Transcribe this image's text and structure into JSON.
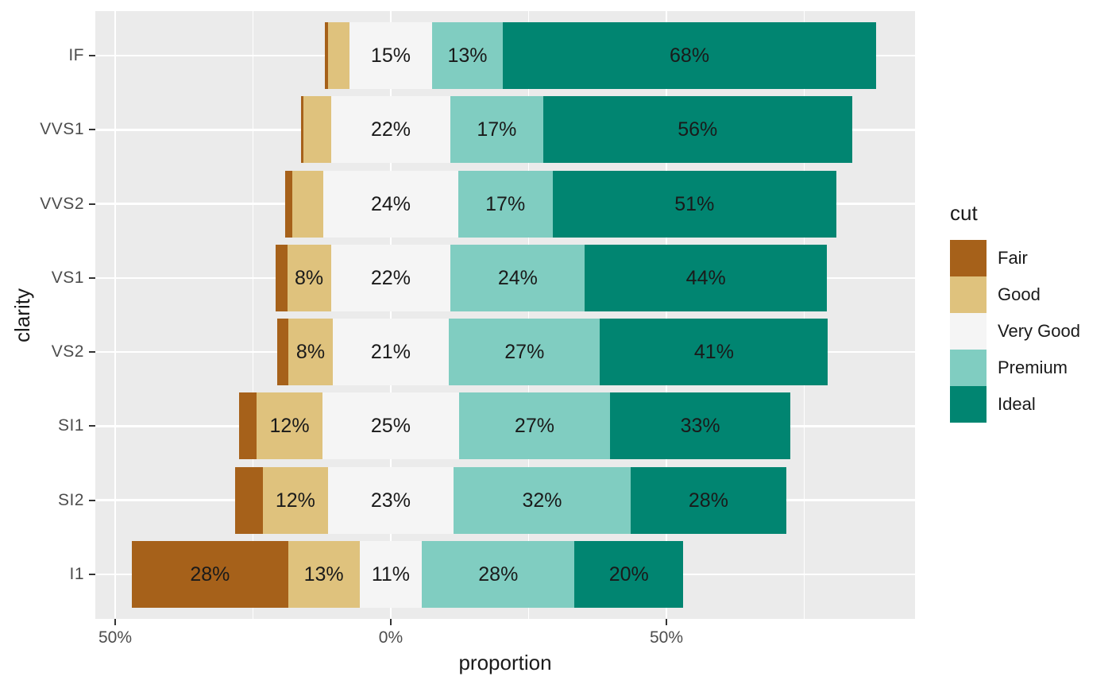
{
  "chart_data": {
    "type": "bar",
    "variant": "diverging-stacked-likert",
    "orientation": "horizontal",
    "title": "",
    "xlabel": "proportion",
    "ylabel": "clarity",
    "center_category": "Very Good",
    "categories": [
      "IF",
      "VVS1",
      "VVS2",
      "VS1",
      "VS2",
      "SI1",
      "SI2",
      "I1"
    ],
    "series": [
      {
        "name": "Fair",
        "color": "#A6611A",
        "values": [
          0.5,
          0.47,
          1.36,
          2.08,
          2.13,
          3.12,
          5.07,
          28.34
        ],
        "bar_labels": [
          null,
          null,
          null,
          null,
          null,
          null,
          null,
          "28%"
        ]
      },
      {
        "name": "Good",
        "color": "#DFC27D",
        "values": [
          3.97,
          5.09,
          5.65,
          7.93,
          7.98,
          11.94,
          11.76,
          12.96
        ],
        "bar_labels": [
          null,
          null,
          null,
          "8%",
          "8%",
          "12%",
          "12%",
          "13%"
        ]
      },
      {
        "name": "Very Good",
        "color": "#F5F5F5",
        "values": [
          14.97,
          21.59,
          24.38,
          21.72,
          21.14,
          24.8,
          22.84,
          11.34
        ],
        "bar_labels": [
          "15%",
          "22%",
          "24%",
          "22%",
          "21%",
          "25%",
          "23%",
          "11%"
        ]
      },
      {
        "name": "Premium",
        "color": "#80CDC1",
        "values": [
          12.85,
          16.85,
          17.17,
          24.34,
          27.38,
          27.36,
          32.08,
          27.67
        ],
        "bar_labels": [
          "13%",
          "17%",
          "17%",
          "24%",
          "27%",
          "27%",
          "32%",
          "28%"
        ]
      },
      {
        "name": "Ideal",
        "color": "#018571",
        "values": [
          67.71,
          56.01,
          51.44,
          43.92,
          41.37,
          32.77,
          28.26,
          19.7
        ],
        "bar_labels": [
          "68%",
          "56%",
          "51%",
          "44%",
          "41%",
          "33%",
          "28%",
          "20%"
        ]
      }
    ],
    "x_axis": {
      "domain": [
        -53.6,
        95.1
      ],
      "major_ticks": [
        {
          "value": -50,
          "label": "50%"
        },
        {
          "value": 0,
          "label": "0%"
        },
        {
          "value": 50,
          "label": "50%"
        }
      ],
      "minor_gridlines": [
        -25,
        25,
        75
      ],
      "grid": true
    },
    "legend": {
      "title": "cut",
      "position": "right",
      "entries": [
        {
          "label": "Fair",
          "color": "#A6611A"
        },
        {
          "label": "Good",
          "color": "#DFC27D"
        },
        {
          "label": "Very Good",
          "color": "#F5F5F5"
        },
        {
          "label": "Premium",
          "color": "#80CDC1"
        },
        {
          "label": "Ideal",
          "color": "#018571"
        }
      ]
    },
    "style": {
      "panel_background": "#EBEBEB",
      "grid_color": "#FFFFFF",
      "tick_text_color": "#4D4D4D",
      "title_text_color": "#1A1A1A",
      "bar_label_color": "#1A1A1A"
    }
  }
}
